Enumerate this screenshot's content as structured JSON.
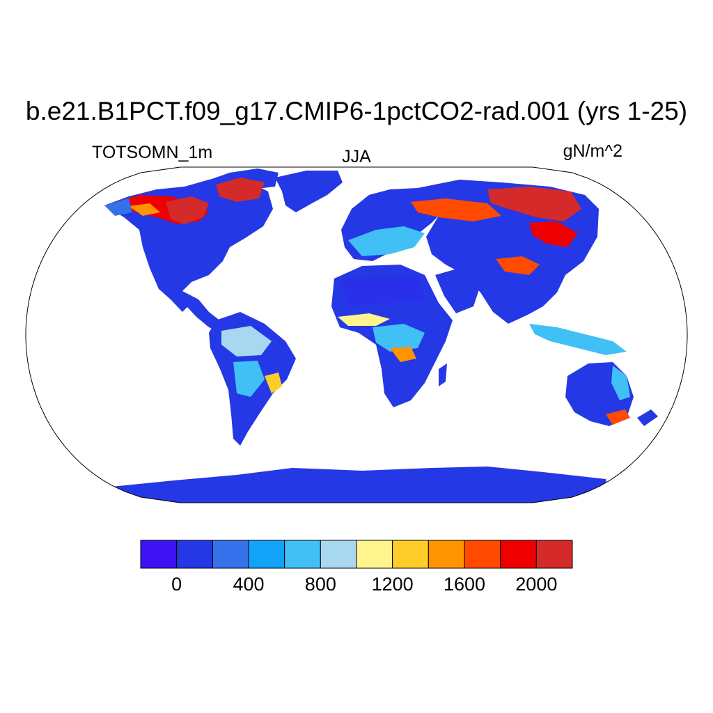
{
  "header": {
    "title": "b.e21.B1PCT.f09_g17.CMIP6-1pctCO2-rad.001 (yrs 1-25)",
    "left_label": "TOTSOMN_1m",
    "center_label": "JJA",
    "right_label": "gN/m^2"
  },
  "map": {
    "projection": "robinson",
    "background": "#ffffff",
    "land_color_default": "#2438e6"
  },
  "colorbar": {
    "colors": [
      "#3c12f5",
      "#2438e6",
      "#3471ea",
      "#12a2f8",
      "#40c0f4",
      "#a8d8f0",
      "#fff58c",
      "#ffcd2a",
      "#ff9400",
      "#ff4a00",
      "#ee0000",
      "#d42a2a"
    ],
    "tick_labels": [
      "0",
      "400",
      "800",
      "1200",
      "1600",
      "2000"
    ],
    "tick_values": [
      0,
      400,
      800,
      1200,
      1600,
      2000
    ],
    "levels": [
      0,
      200,
      400,
      600,
      800,
      1000,
      1200,
      1400,
      1600,
      1800,
      2000
    ]
  }
}
